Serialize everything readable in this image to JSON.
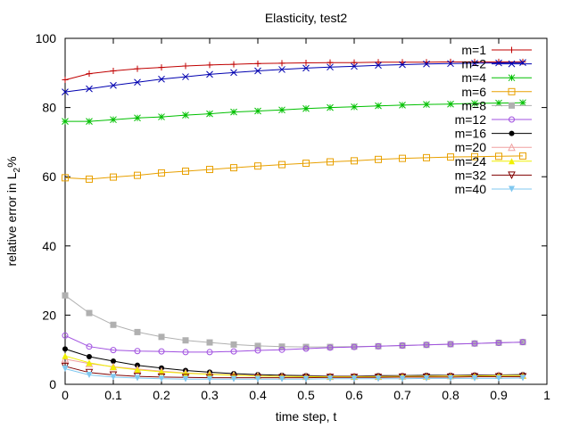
{
  "chart_data": {
    "type": "line",
    "title": "Elasticity, test2",
    "xlabel": "time step, t",
    "ylabel": "relative error in L",
    "ylabel_sub": "2",
    "ylabel_suffix": "%",
    "xlim": [
      0,
      1
    ],
    "ylim": [
      0,
      100
    ],
    "x_ticks": [
      0,
      0.1,
      0.2,
      0.3,
      0.4,
      0.5,
      0.6,
      0.7,
      0.8,
      0.9,
      1
    ],
    "x_tick_labels": [
      "0",
      "0.1",
      "0.2",
      "0.3",
      "0.4",
      "0.5",
      "0.6",
      "0.7",
      "0.8",
      "0.9",
      "1"
    ],
    "y_ticks": [
      0,
      20,
      40,
      60,
      80,
      100
    ],
    "y_tick_labels": [
      "0",
      "20",
      "40",
      "60",
      "80",
      "100"
    ],
    "legend_position": "top-right",
    "x": [
      0,
      0.05,
      0.1,
      0.15,
      0.2,
      0.25,
      0.3,
      0.35,
      0.4,
      0.45,
      0.5,
      0.55,
      0.6,
      0.65,
      0.7,
      0.75,
      0.8,
      0.85,
      0.9,
      0.95
    ],
    "series": [
      {
        "name": "m=1",
        "color": "#c00000",
        "marker": "plus",
        "values": [
          88.0,
          89.8,
          90.6,
          91.2,
          91.6,
          92.0,
          92.3,
          92.5,
          92.7,
          92.8,
          92.9,
          93.0,
          93.0,
          93.1,
          93.1,
          93.1,
          93.2,
          93.2,
          93.2,
          93.2
        ]
      },
      {
        "name": "m=2",
        "color": "#0000b0",
        "marker": "x",
        "values": [
          84.5,
          85.4,
          86.4,
          87.3,
          88.2,
          88.9,
          89.6,
          90.1,
          90.6,
          91.0,
          91.4,
          91.7,
          91.9,
          92.2,
          92.4,
          92.6,
          92.7,
          92.8,
          92.9,
          93.0
        ]
      },
      {
        "name": "m=4",
        "color": "#00c000",
        "marker": "star",
        "values": [
          76.0,
          76.0,
          76.5,
          77.0,
          77.3,
          77.8,
          78.2,
          78.7,
          79.0,
          79.3,
          79.7,
          80.0,
          80.2,
          80.5,
          80.7,
          80.9,
          81.0,
          81.2,
          81.3,
          81.4
        ]
      },
      {
        "name": "m=6",
        "color": "#e8a000",
        "marker": "square-open",
        "values": [
          59.7,
          59.3,
          59.9,
          60.4,
          61.1,
          61.6,
          62.1,
          62.6,
          63.1,
          63.5,
          63.9,
          64.3,
          64.6,
          65.0,
          65.3,
          65.5,
          65.7,
          65.8,
          65.9,
          66.0
        ]
      },
      {
        "name": "m=8",
        "color": "#b0b0b0",
        "marker": "square-filled",
        "values": [
          25.7,
          20.6,
          17.2,
          15.1,
          13.7,
          12.7,
          12.1,
          11.5,
          11.1,
          10.9,
          10.8,
          10.8,
          10.9,
          11.0,
          11.2,
          11.4,
          11.6,
          11.8,
          12.0,
          12.2
        ]
      },
      {
        "name": "m=12",
        "color": "#a050e0",
        "marker": "circle-open",
        "values": [
          14.1,
          10.9,
          9.9,
          9.6,
          9.5,
          9.3,
          9.3,
          9.5,
          9.8,
          10.0,
          10.3,
          10.6,
          10.8,
          11.0,
          11.2,
          11.4,
          11.6,
          11.8,
          12.0,
          12.2
        ]
      },
      {
        "name": "m=16",
        "color": "#000000",
        "marker": "circle-filled",
        "values": [
          10.2,
          8.0,
          6.7,
          5.5,
          4.7,
          4.0,
          3.5,
          3.1,
          2.8,
          2.6,
          2.5,
          2.4,
          2.4,
          2.5,
          2.5,
          2.6,
          2.6,
          2.7,
          2.7,
          2.8
        ]
      },
      {
        "name": "m=20",
        "color": "#f0a0a0",
        "marker": "triangle-open",
        "values": [
          7.3,
          6.0,
          5.1,
          4.4,
          3.8,
          3.3,
          3.0,
          2.7,
          2.5,
          2.4,
          2.3,
          2.3,
          2.3,
          2.3,
          2.4,
          2.4,
          2.5,
          2.5,
          2.6,
          2.6
        ]
      },
      {
        "name": "m=24",
        "color": "#f0f000",
        "marker": "triangle-filled",
        "values": [
          8.2,
          6.2,
          5.0,
          4.2,
          3.6,
          3.2,
          2.9,
          2.6,
          2.4,
          2.3,
          2.2,
          2.2,
          2.2,
          2.2,
          2.3,
          2.3,
          2.4,
          2.4,
          2.5,
          2.5
        ]
      },
      {
        "name": "m=32",
        "color": "#800000",
        "marker": "triangle-down-open",
        "values": [
          5.2,
          3.4,
          2.7,
          2.3,
          2.1,
          2.0,
          1.9,
          1.9,
          1.9,
          1.9,
          1.9,
          2.0,
          2.0,
          2.0,
          2.1,
          2.1,
          2.1,
          2.2,
          2.2,
          2.2
        ]
      },
      {
        "name": "m=40",
        "color": "#80c8f0",
        "marker": "triangle-down-filled",
        "values": [
          4.5,
          2.7,
          2.1,
          1.8,
          1.6,
          1.5,
          1.5,
          1.5,
          1.5,
          1.5,
          1.5,
          1.6,
          1.6,
          1.6,
          1.6,
          1.7,
          1.7,
          1.7,
          1.7,
          1.8
        ]
      }
    ]
  }
}
